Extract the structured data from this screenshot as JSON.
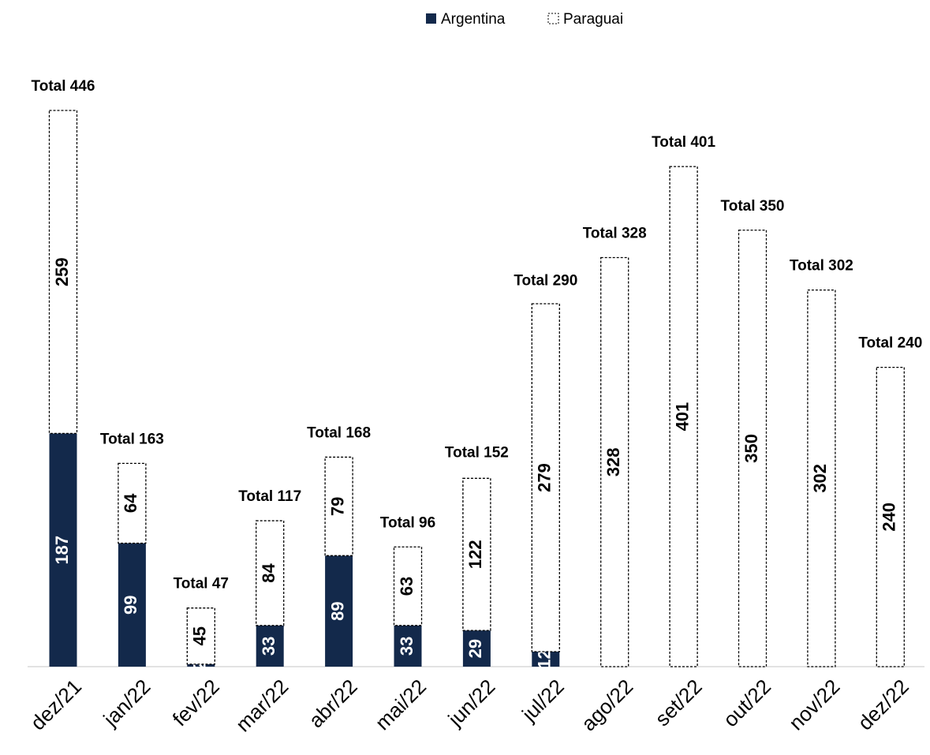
{
  "chart_data": {
    "type": "stacked-bar",
    "categories": [
      "dez/21",
      "jan/22",
      "fev/22",
      "mar/22",
      "abr/22",
      "mai/22",
      "jun/22",
      "jul/22",
      "ago/22",
      "set/22",
      "out/22",
      "nov/22",
      "dez/22"
    ],
    "series": [
      {
        "name": "Argentina",
        "color": "#13294b",
        "values": [
          187,
          99,
          2,
          33,
          89,
          33,
          29,
          12,
          null,
          null,
          null,
          null,
          null
        ]
      },
      {
        "name": "Paraguai",
        "color": "#ffffff",
        "values": [
          259,
          64,
          45,
          84,
          79,
          63,
          122,
          279,
          328,
          401,
          350,
          302,
          240
        ]
      }
    ],
    "totals": {
      "values": [
        446,
        163,
        47,
        117,
        168,
        96,
        152,
        290,
        328,
        401,
        350,
        302,
        240
      ],
      "value_labels": [
        "Total 446",
        "Total 163",
        "Total 47",
        "Total 117",
        "Total 168",
        "Total 96",
        "Total 152",
        "Total 290",
        "Total 328",
        "Total 401",
        "Total 350",
        "Total 302",
        "Total 240"
      ]
    }
  }
}
